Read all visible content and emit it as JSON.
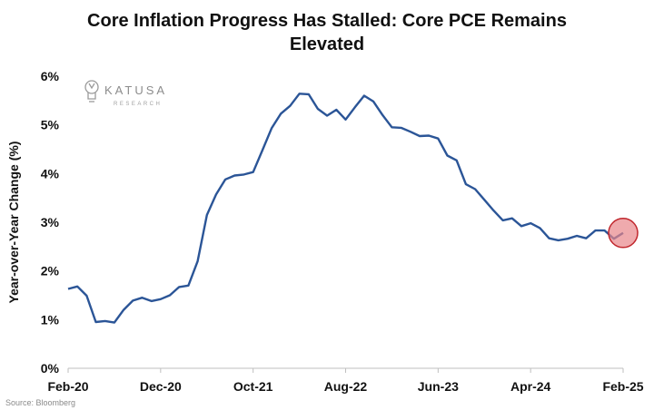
{
  "chart_data": {
    "type": "line",
    "title_lines": [
      "Core Inflation Progress Has Stalled: Core PCE Remains",
      "Elevated"
    ],
    "ylabel": "Year-over-Year Change (%)",
    "xlabel": "",
    "ylim": [
      0,
      6
    ],
    "yticks": [
      0,
      1,
      2,
      3,
      4,
      5,
      6
    ],
    "ytick_labels": [
      "0%",
      "1%",
      "2%",
      "3%",
      "4%",
      "5%",
      "6%"
    ],
    "xtick_labels": [
      "Feb-20",
      "Dec-20",
      "Oct-21",
      "Aug-22",
      "Jun-23",
      "Apr-24",
      "Feb-25"
    ],
    "xtick_months": [
      0,
      10,
      20,
      30,
      40,
      50,
      60
    ],
    "grid": false,
    "legend": "none",
    "series": [
      {
        "x_start": "Feb-20",
        "x_end": "Feb-25",
        "values": [
          1.63,
          1.68,
          1.49,
          0.95,
          0.97,
          0.94,
          1.2,
          1.39,
          1.45,
          1.38,
          1.42,
          1.5,
          1.67,
          1.7,
          2.2,
          3.15,
          3.57,
          3.88,
          3.96,
          3.98,
          4.03,
          4.48,
          4.93,
          5.23,
          5.39,
          5.64,
          5.63,
          5.33,
          5.19,
          5.31,
          5.11,
          5.36,
          5.6,
          5.48,
          5.2,
          4.95,
          4.94,
          4.86,
          4.77,
          4.78,
          4.72,
          4.37,
          4.27,
          3.78,
          3.68,
          3.46,
          3.24,
          3.04,
          3.08,
          2.92,
          2.98,
          2.88,
          2.67,
          2.63,
          2.66,
          2.72,
          2.67,
          2.83,
          2.83,
          2.66,
          2.78
        ]
      }
    ],
    "highlight_circle_at": "Feb-25",
    "source": "Source: Bloomberg",
    "colors": {
      "line": "#2b5597",
      "highlight_fill": "#e8868a",
      "highlight_stroke": "#c1272d",
      "axis": "#bfbfbf"
    }
  },
  "logo": {
    "name": "KATUSA",
    "sub": "RESEARCH",
    "icon": "lightbulb-icon"
  }
}
